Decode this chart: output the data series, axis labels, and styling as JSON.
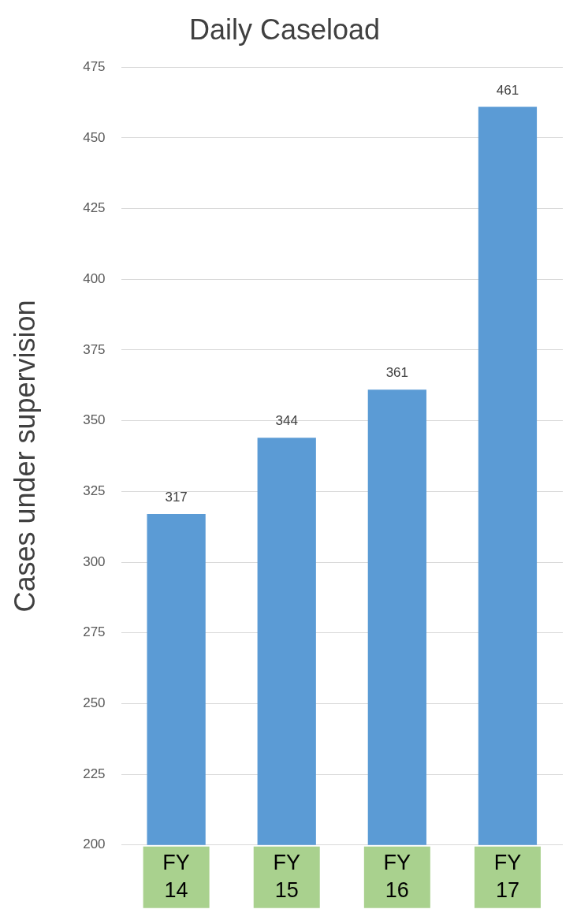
{
  "chart_data": {
    "type": "bar",
    "title": "Daily Caseload",
    "ylabel": "Cases under supervision",
    "categories": [
      "FY 14",
      "FY 15",
      "FY 16",
      "FY 17"
    ],
    "values": [
      317,
      344,
      361,
      461
    ],
    "color": "#5b9bd5",
    "ylim": [
      200,
      475
    ],
    "yticks": [
      200,
      225,
      250,
      275,
      300,
      325,
      350,
      375,
      400,
      425,
      450,
      475
    ],
    "grid": "y",
    "data_labels": true,
    "legend": false
  }
}
